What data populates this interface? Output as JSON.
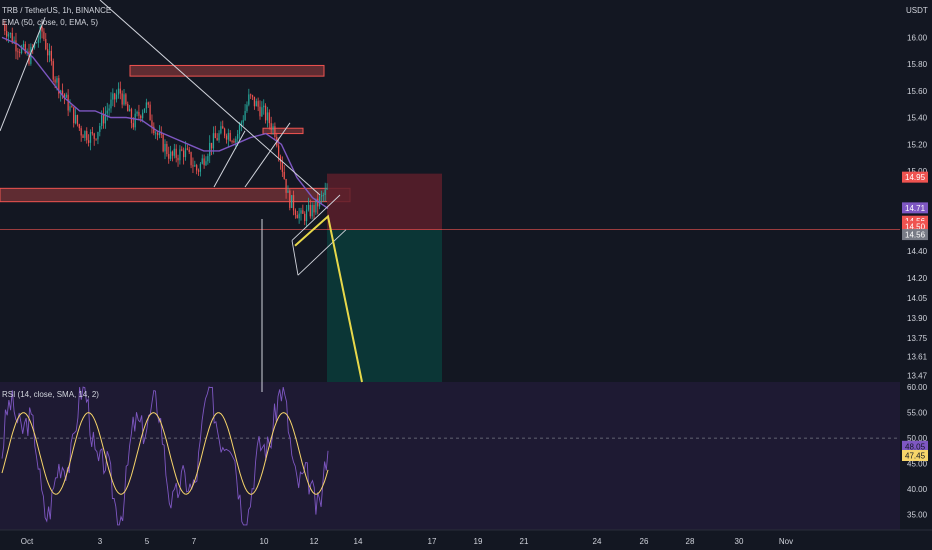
{
  "header": {
    "symbol": "TRB / TetherUS, 1h, BINANCE",
    "ema_label": "EMA (50, close, 0, EMA, 5)",
    "rsi_label": "RSI (14, close, SMA, 14, 2)",
    "currency": "USDT"
  },
  "colors": {
    "background": "#131722",
    "rsi_background": "#1e1a33",
    "candle_up": "#26a69a",
    "candle_down": "#ef5350",
    "ema": "#7e57c2",
    "rsi": "#7e57c2",
    "rsi_ma": "#f7d56a",
    "projection": "#e8d84a",
    "zone_fill": "#ef5350",
    "stop_fill": "#5c1f2a",
    "target_fill": "#0b3a39",
    "trendline": "#d1d4dc"
  },
  "chart_data": [
    {
      "type": "candlestick",
      "title": "TRB / TetherUS, 1h, BINANCE",
      "x_tick_labels": [
        "Oct",
        "3",
        "5",
        "7",
        "10",
        "12",
        "14",
        "17",
        "19",
        "21",
        "24",
        "26",
        "28",
        "30",
        "Nov"
      ],
      "y_tick_labels": [
        "16.00",
        "15.80",
        "15.60",
        "15.40",
        "15.20",
        "15.00",
        "14.40",
        "14.20",
        "14.05",
        "13.90",
        "13.75",
        "13.61",
        "13.47"
      ],
      "y_scale": "price",
      "ylim": [
        13.42,
        16.28
      ],
      "grid": false,
      "series": [
        {
          "name": "close",
          "approx_path": [
            16.1,
            15.95,
            15.85,
            16.05,
            15.7,
            15.5,
            15.3,
            15.25,
            15.45,
            15.6,
            15.35,
            15.5,
            15.25,
            15.1,
            15.15,
            15.0,
            15.2,
            15.3,
            15.25,
            15.55,
            15.45,
            15.3,
            14.8,
            14.65,
            14.72,
            14.85
          ]
        },
        {
          "name": "EMA 50",
          "approx_path": [
            16.0,
            15.95,
            15.85,
            15.7,
            15.55,
            15.45,
            15.45,
            15.4,
            15.4,
            15.38,
            15.3,
            15.25,
            15.2,
            15.15,
            15.15,
            15.2,
            15.25,
            15.28,
            15.2,
            14.95,
            14.8,
            14.72
          ]
        }
      ],
      "price_tags": [
        {
          "value": "14.95",
          "color": "#ef5350"
        },
        {
          "value": "14.71",
          "color": "#7e57c2"
        },
        {
          "value": "14.56",
          "color": "#ef5350"
        },
        {
          "value": "14.50",
          "color": "#ef5350"
        },
        {
          "value": "14.56",
          "color": "#787b86"
        }
      ],
      "annotations": [
        "resistance zone ~15.75",
        "support zone ~14.82",
        "small zone ~15.30",
        "descending trendline",
        "rising wedge",
        "short position (stop 14.98, entry 14.56, target below 13.47)",
        "projected drop"
      ]
    },
    {
      "type": "line",
      "title": "RSI (14, close, SMA, 14, 2)",
      "y_tick_labels": [
        "60.00",
        "55.00",
        "50.00",
        "45.00",
        "40.00",
        "35.00"
      ],
      "ylim": [
        32,
        61
      ],
      "reference_line": 50,
      "series": [
        {
          "name": "RSI",
          "last": 48.05
        },
        {
          "name": "RSI MA",
          "last": 47.45
        }
      ]
    }
  ]
}
